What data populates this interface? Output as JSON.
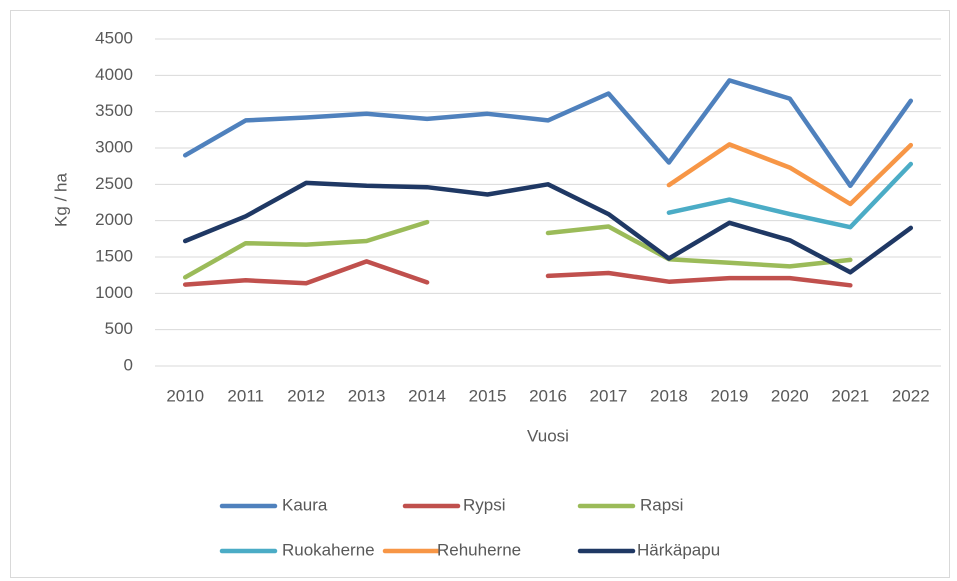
{
  "chart_data": {
    "type": "line",
    "x_label": "Vuosi",
    "y_label": "Kg / ha",
    "categories": [
      "2010",
      "2011",
      "2012",
      "2013",
      "2014",
      "2015",
      "2016",
      "2017",
      "2018",
      "2019",
      "2020",
      "2021",
      "2022"
    ],
    "ylim": [
      0,
      4500
    ],
    "yticks": [
      0,
      500,
      1000,
      1500,
      2000,
      2500,
      3000,
      3500,
      4000,
      4500
    ],
    "grid": true,
    "legend": "bottom",
    "series": [
      {
        "name": "Kaura",
        "color": "#4f81bd",
        "values": [
          2900,
          3380,
          3420,
          3470,
          3400,
          3470,
          3380,
          3750,
          2800,
          3930,
          3680,
          2480,
          3650
        ]
      },
      {
        "name": "Rypsi",
        "color": "#c0504d",
        "values": [
          1120,
          1180,
          1140,
          1440,
          1150,
          null,
          1240,
          1280,
          1160,
          1210,
          1210,
          1110,
          null
        ]
      },
      {
        "name": "Rapsi",
        "color": "#9bbb59",
        "values": [
          1220,
          1690,
          1670,
          1720,
          1980,
          null,
          1830,
          1920,
          1470,
          1420,
          1370,
          1460,
          null
        ]
      },
      {
        "name": "Ruokaherne",
        "color": "#4bacc6",
        "values": [
          null,
          null,
          null,
          null,
          null,
          null,
          null,
          null,
          2110,
          2290,
          2090,
          1910,
          2780
        ]
      },
      {
        "name": "Rehuherne",
        "color": "#f79646",
        "values": [
          null,
          null,
          null,
          null,
          null,
          null,
          null,
          null,
          2490,
          3050,
          2730,
          2230,
          3040
        ]
      },
      {
        "name": "Härkäpapu",
        "color": "#1f3864",
        "values": [
          1720,
          2060,
          2520,
          2480,
          2460,
          2360,
          2500,
          2090,
          1480,
          1970,
          1730,
          1290,
          1900
        ]
      }
    ]
  }
}
